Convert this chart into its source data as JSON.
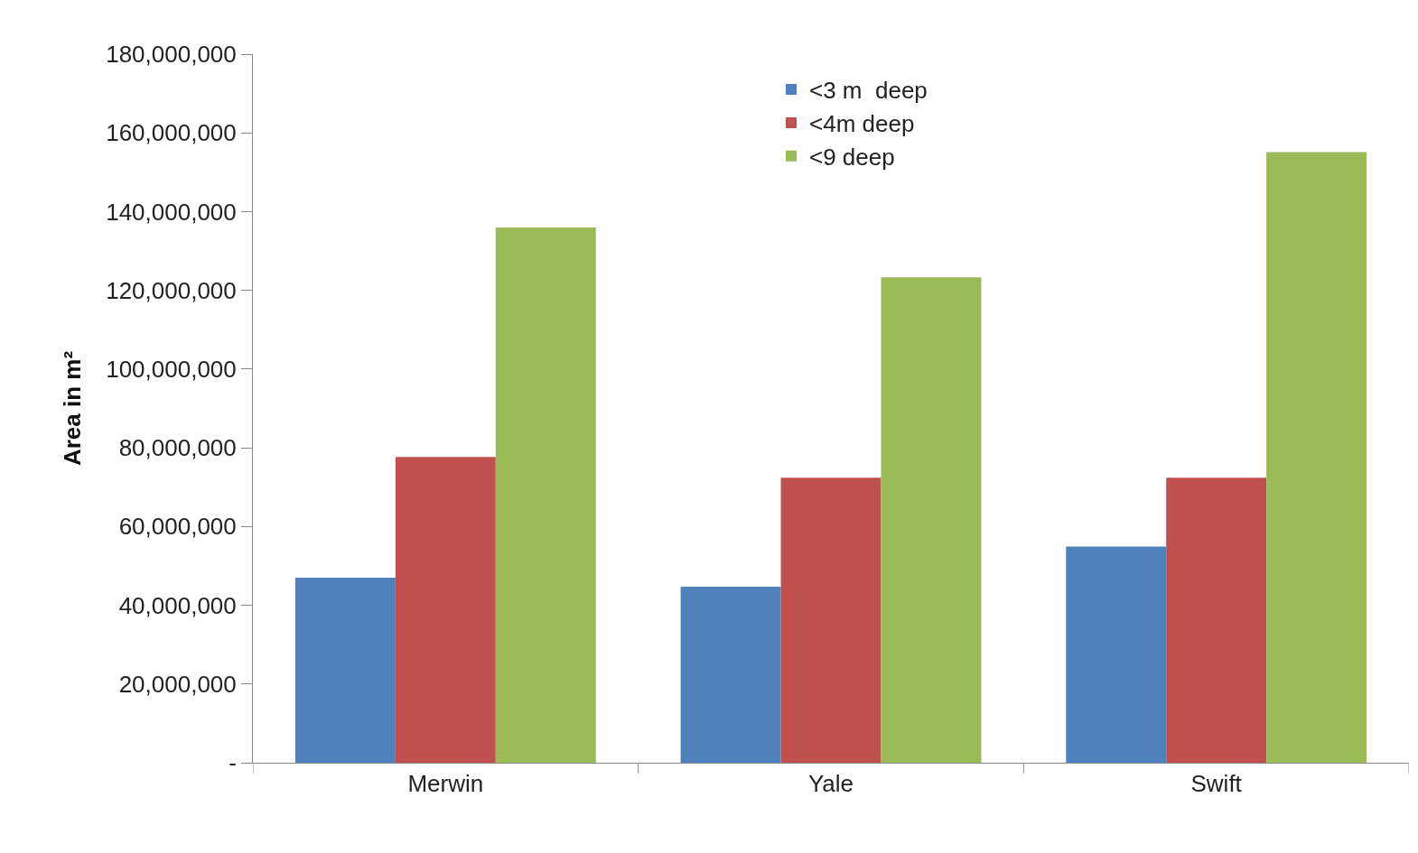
{
  "chart_data": {
    "type": "bar",
    "ylabel": "Area in m²",
    "categories": [
      "Merwin",
      "Yale",
      "Swift"
    ],
    "series": [
      {
        "name": "<3 m  deep",
        "color": "#4f81bd",
        "values": [
          47000000,
          44700000,
          54900000
        ]
      },
      {
        "name": "<4m deep",
        "color": "#c0504d",
        "values": [
          77700000,
          72400000,
          72400000
        ]
      },
      {
        "name": "<9 deep",
        "color": "#9bbb59",
        "values": [
          136000000,
          123300000,
          155100000
        ]
      }
    ],
    "ylim": [
      0,
      180000000
    ],
    "yticks": [
      {
        "value": 0,
        "label": "-"
      },
      {
        "value": 20000000,
        "label": "20,000,000"
      },
      {
        "value": 40000000,
        "label": "40,000,000"
      },
      {
        "value": 60000000,
        "label": "60,000,000"
      },
      {
        "value": 80000000,
        "label": "80,000,000"
      },
      {
        "value": 100000000,
        "label": "100,000,000"
      },
      {
        "value": 120000000,
        "label": "120,000,000"
      },
      {
        "value": 140000000,
        "label": "140,000,000"
      },
      {
        "value": 160000000,
        "label": "160,000,000"
      },
      {
        "value": 180000000,
        "label": "180,000,000"
      }
    ],
    "legend": "top"
  }
}
